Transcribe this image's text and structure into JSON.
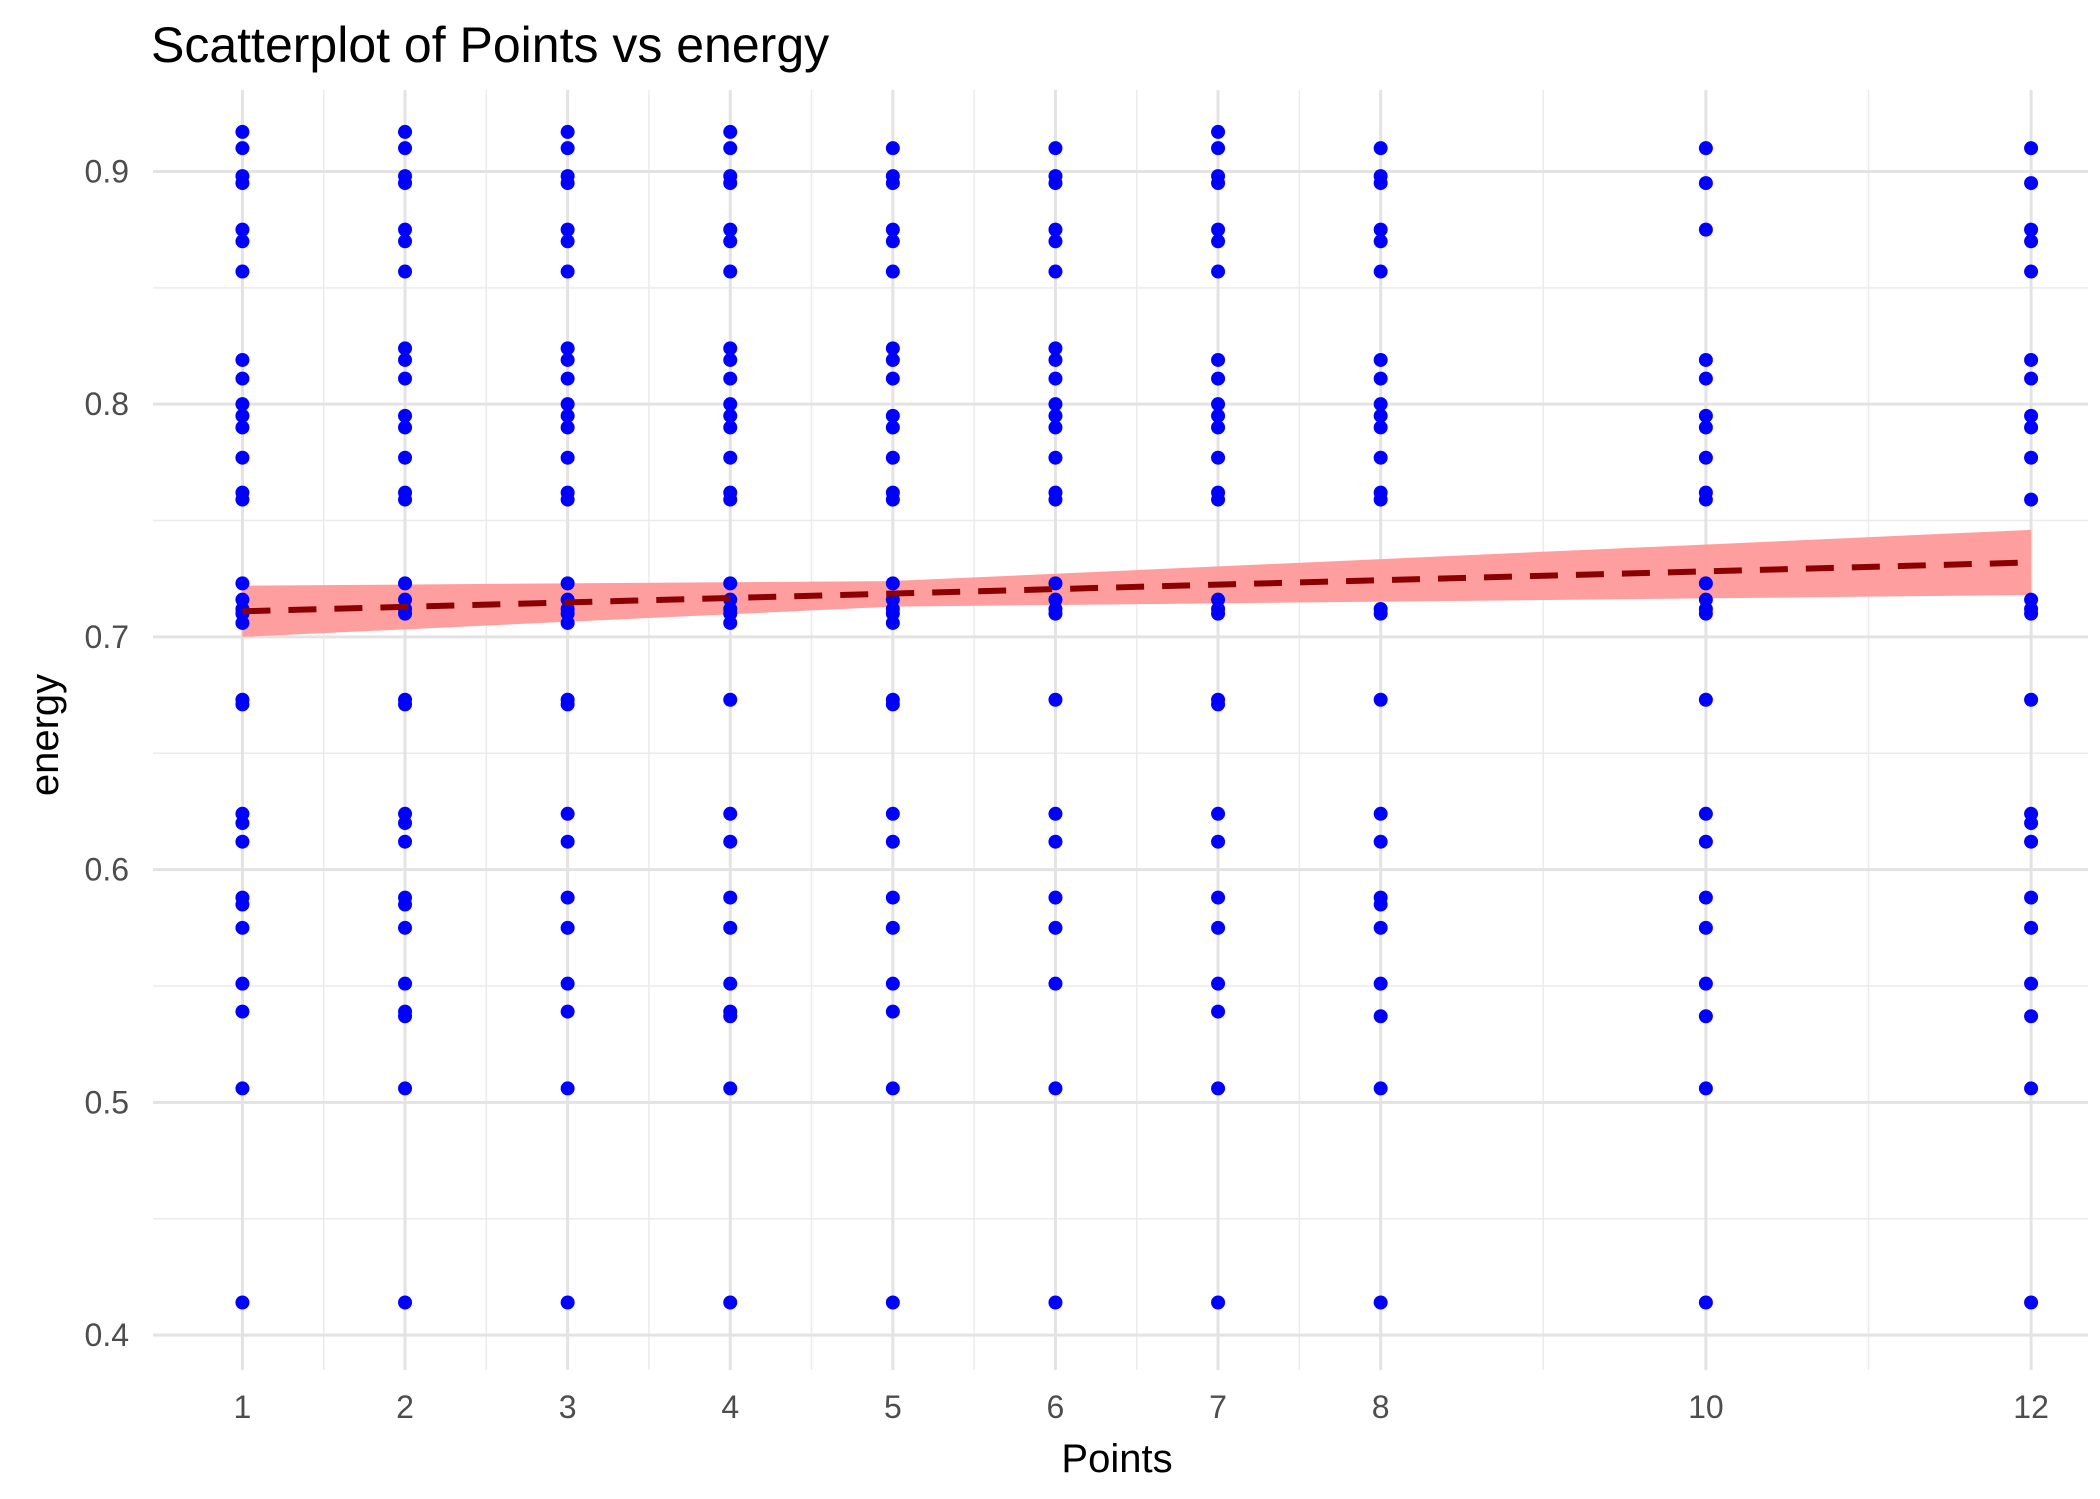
{
  "chart_data": {
    "type": "scatter",
    "title": "Scatterplot of Points vs  energy",
    "xlabel": "Points",
    "ylabel": "energy",
    "xlim": [
      0.45,
      12.35
    ],
    "ylim": [
      0.385,
      0.935
    ],
    "x_ticks": [
      1,
      2,
      3,
      4,
      5,
      6,
      7,
      8,
      10,
      12
    ],
    "x_tick_labels": [
      "1",
      "2",
      "3",
      "4",
      "5",
      "6",
      "7",
      "8",
      "10",
      "12"
    ],
    "x_minor_ticks": [
      1.5,
      2.5,
      3.5,
      4.5,
      5.5,
      6.5,
      7.5,
      9,
      11
    ],
    "y_ticks": [
      0.4,
      0.5,
      0.6,
      0.7,
      0.8,
      0.9
    ],
    "y_tick_labels": [
      "0.4",
      "0.5",
      "0.6",
      "0.7",
      "0.8",
      "0.9"
    ],
    "y_minor_ticks": [
      0.45,
      0.55,
      0.65,
      0.75,
      0.85
    ],
    "grid": true,
    "point_color": "#0000ff",
    "series": [
      {
        "x": 1,
        "values": [
          0.917,
          0.91,
          0.898,
          0.895,
          0.875,
          0.87,
          0.857,
          0.819,
          0.811,
          0.8,
          0.795,
          0.79,
          0.777,
          0.762,
          0.759,
          0.723,
          0.716,
          0.712,
          0.71,
          0.706,
          0.673,
          0.671,
          0.624,
          0.62,
          0.612,
          0.588,
          0.585,
          0.575,
          0.551,
          0.539,
          0.506,
          0.414
        ]
      },
      {
        "x": 2,
        "values": [
          0.917,
          0.91,
          0.898,
          0.895,
          0.875,
          0.87,
          0.857,
          0.824,
          0.819,
          0.811,
          0.795,
          0.79,
          0.777,
          0.762,
          0.759,
          0.723,
          0.716,
          0.712,
          0.71,
          0.673,
          0.671,
          0.624,
          0.62,
          0.612,
          0.588,
          0.585,
          0.575,
          0.551,
          0.539,
          0.537,
          0.506,
          0.414
        ]
      },
      {
        "x": 3,
        "values": [
          0.917,
          0.91,
          0.898,
          0.895,
          0.875,
          0.87,
          0.857,
          0.824,
          0.819,
          0.811,
          0.8,
          0.795,
          0.79,
          0.777,
          0.762,
          0.759,
          0.723,
          0.716,
          0.712,
          0.71,
          0.706,
          0.673,
          0.671,
          0.624,
          0.612,
          0.588,
          0.575,
          0.551,
          0.539,
          0.506,
          0.414
        ]
      },
      {
        "x": 4,
        "values": [
          0.917,
          0.91,
          0.898,
          0.895,
          0.875,
          0.87,
          0.857,
          0.824,
          0.819,
          0.811,
          0.8,
          0.795,
          0.79,
          0.777,
          0.762,
          0.759,
          0.723,
          0.716,
          0.712,
          0.71,
          0.706,
          0.673,
          0.624,
          0.612,
          0.588,
          0.575,
          0.551,
          0.539,
          0.537,
          0.506,
          0.414
        ]
      },
      {
        "x": 5,
        "values": [
          0.91,
          0.898,
          0.895,
          0.875,
          0.87,
          0.857,
          0.824,
          0.819,
          0.811,
          0.795,
          0.79,
          0.777,
          0.762,
          0.759,
          0.723,
          0.716,
          0.712,
          0.71,
          0.706,
          0.673,
          0.671,
          0.624,
          0.612,
          0.588,
          0.575,
          0.551,
          0.539,
          0.506,
          0.414
        ]
      },
      {
        "x": 6,
        "values": [
          0.91,
          0.898,
          0.895,
          0.875,
          0.87,
          0.857,
          0.824,
          0.819,
          0.811,
          0.8,
          0.795,
          0.79,
          0.777,
          0.762,
          0.759,
          0.723,
          0.716,
          0.712,
          0.71,
          0.673,
          0.624,
          0.612,
          0.588,
          0.575,
          0.551,
          0.506,
          0.414
        ]
      },
      {
        "x": 7,
        "values": [
          0.917,
          0.91,
          0.898,
          0.895,
          0.875,
          0.87,
          0.857,
          0.819,
          0.811,
          0.8,
          0.795,
          0.79,
          0.777,
          0.762,
          0.759,
          0.716,
          0.712,
          0.71,
          0.673,
          0.671,
          0.624,
          0.612,
          0.588,
          0.575,
          0.551,
          0.539,
          0.506,
          0.414
        ]
      },
      {
        "x": 8,
        "values": [
          0.91,
          0.898,
          0.895,
          0.875,
          0.87,
          0.857,
          0.819,
          0.811,
          0.8,
          0.795,
          0.79,
          0.777,
          0.762,
          0.759,
          0.712,
          0.71,
          0.673,
          0.624,
          0.612,
          0.588,
          0.585,
          0.575,
          0.551,
          0.537,
          0.506,
          0.414
        ]
      },
      {
        "x": 10,
        "values": [
          0.91,
          0.895,
          0.875,
          0.819,
          0.811,
          0.795,
          0.79,
          0.777,
          0.762,
          0.759,
          0.723,
          0.716,
          0.712,
          0.71,
          0.673,
          0.624,
          0.612,
          0.588,
          0.575,
          0.551,
          0.537,
          0.506,
          0.414
        ]
      },
      {
        "x": 12,
        "values": [
          0.91,
          0.895,
          0.875,
          0.87,
          0.857,
          0.819,
          0.811,
          0.795,
          0.79,
          0.777,
          0.759,
          0.716,
          0.712,
          0.71,
          0.673,
          0.624,
          0.62,
          0.612,
          0.588,
          0.575,
          0.551,
          0.537,
          0.506,
          0.414
        ]
      }
    ],
    "regression": {
      "line_color": "#8b0000",
      "line_style": "dashed",
      "band_color": "#ff9999",
      "line": [
        [
          1,
          0.711
        ],
        [
          12,
          0.732
        ]
      ],
      "band_upper": [
        [
          1,
          0.722
        ],
        [
          5,
          0.724
        ],
        [
          12,
          0.746
        ]
      ],
      "band_lower": [
        [
          1,
          0.7
        ],
        [
          5,
          0.713
        ],
        [
          12,
          0.718
        ]
      ]
    }
  }
}
